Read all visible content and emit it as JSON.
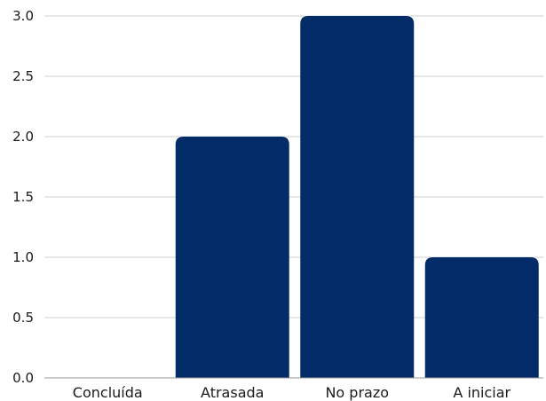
{
  "chart_data": {
    "type": "bar",
    "title": "",
    "xlabel": "",
    "ylabel": "",
    "categories": [
      "Concluída",
      "Atrasada",
      "No prazo",
      "A iniciar"
    ],
    "values": [
      0,
      2,
      3,
      1
    ],
    "ylim": [
      0,
      3.0
    ],
    "yticks": [
      "0.0",
      "0.5",
      "1.0",
      "1.5",
      "2.0",
      "2.5",
      "3.0"
    ],
    "grid": true,
    "legend": "none",
    "bar_color": "#032b68"
  }
}
